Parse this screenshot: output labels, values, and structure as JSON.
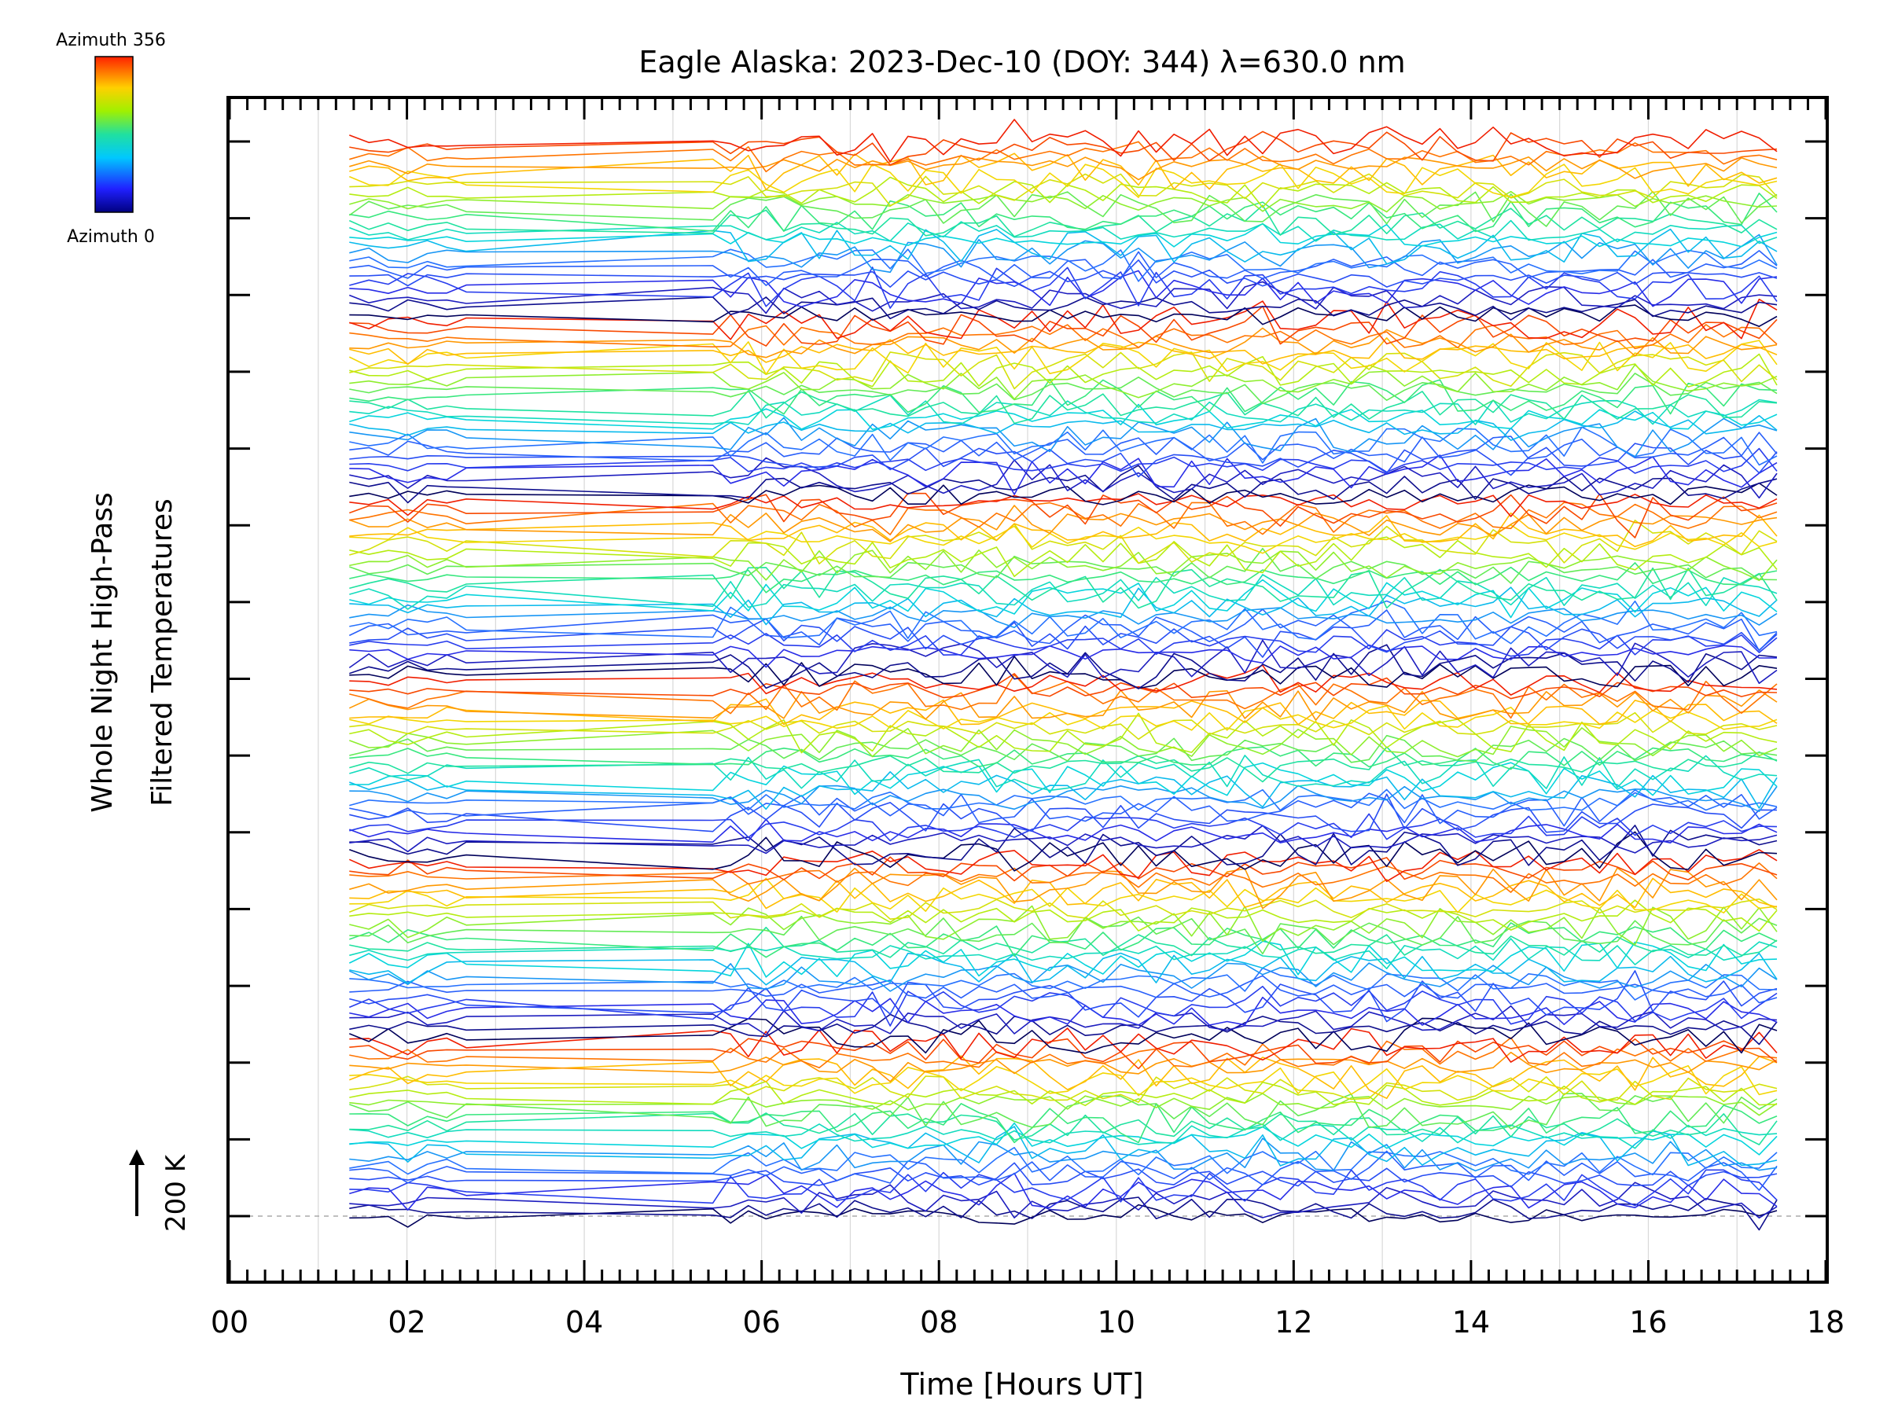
{
  "chart_data": {
    "type": "line",
    "title": "Eagle Alaska: 2023-Dec-10 (DOY: 344) λ=630.0 nm",
    "xlabel": "Time [Hours UT]",
    "ylabel_line1": "Whole Night High-Pass",
    "ylabel_line2": "Filtered Temperatures",
    "xlim": [
      0,
      18
    ],
    "x_tick_labels": [
      "00",
      "02",
      "04",
      "06",
      "08",
      "10",
      "12",
      "14",
      "16",
      "18"
    ],
    "x_tick_values": [
      0,
      2,
      4,
      6,
      8,
      10,
      12,
      14,
      16,
      18
    ],
    "x_gridlines": [
      1,
      2,
      3,
      4,
      5,
      6,
      7,
      8,
      9,
      10,
      11,
      12,
      13,
      14,
      15,
      16,
      17
    ],
    "data_time_range": [
      1.35,
      17.55
    ],
    "observation_gap": [
      2.7,
      5.45
    ],
    "y_major_ticks": 15,
    "y_scale_label": "200 K",
    "series_count": 144,
    "series_groups": 6,
    "series_per_group": 24,
    "color_scale": "rainbow (dark blue → red)",
    "colorbar": {
      "label_top": "Azimuth 356",
      "label_bottom": "Azimuth 0",
      "min": 0,
      "max": 356
    }
  }
}
